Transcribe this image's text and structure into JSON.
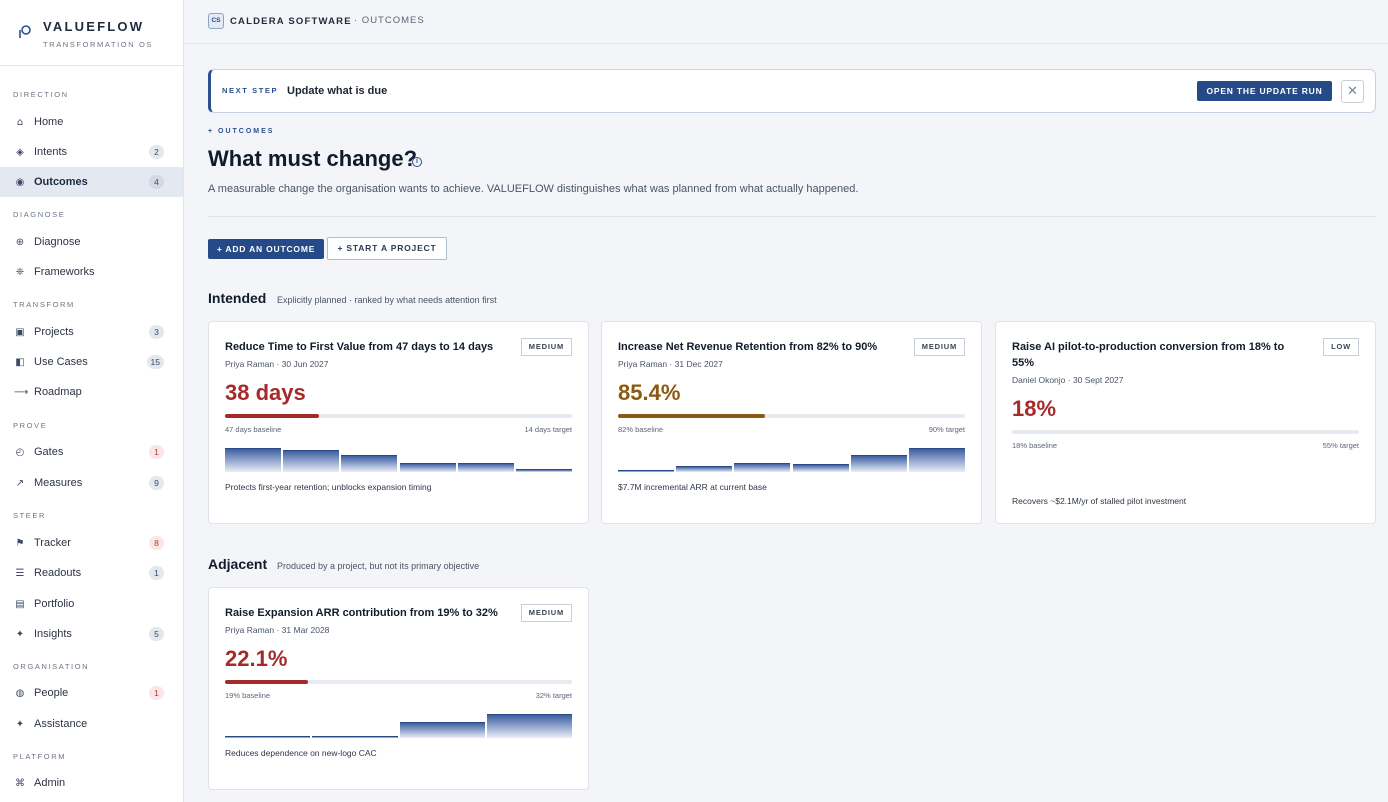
{
  "brand": {
    "name": "VALUEFLOW",
    "subtitle": "TRANSFORMATION OS"
  },
  "sidebar": {
    "sections": [
      {
        "label": "DIRECTION",
        "items": [
          {
            "label": "Home",
            "icon": "home-icon",
            "glyph": "⌂",
            "badge": null,
            "active": false
          },
          {
            "label": "Intents",
            "icon": "intents-icon",
            "glyph": "◈",
            "badge": "2",
            "active": false
          },
          {
            "label": "Outcomes",
            "icon": "target-icon",
            "glyph": "◉",
            "badge": "4",
            "active": true
          }
        ]
      },
      {
        "label": "DIAGNOSE",
        "items": [
          {
            "label": "Diagnose",
            "icon": "globe-icon",
            "glyph": "⊕",
            "badge": null,
            "active": false
          },
          {
            "label": "Frameworks",
            "icon": "frameworks-icon",
            "glyph": "❈",
            "badge": null,
            "active": false
          }
        ]
      },
      {
        "label": "TRANSFORM",
        "items": [
          {
            "label": "Projects",
            "icon": "projects-icon",
            "glyph": "▣",
            "badge": "3",
            "active": false
          },
          {
            "label": "Use Cases",
            "icon": "use-cases-icon",
            "glyph": "◧",
            "badge": "15",
            "active": false
          },
          {
            "label": "Roadmap",
            "icon": "arrow-right-icon",
            "glyph": "⟶",
            "badge": null,
            "active": false
          }
        ]
      },
      {
        "label": "PROVE",
        "items": [
          {
            "label": "Gates",
            "icon": "gate-icon",
            "glyph": "◴",
            "badge": "1",
            "badge_red": true,
            "active": false
          },
          {
            "label": "Measures",
            "icon": "trend-icon",
            "glyph": "↗",
            "badge": "9",
            "active": false
          }
        ]
      },
      {
        "label": "STEER",
        "items": [
          {
            "label": "Tracker",
            "icon": "flag-icon",
            "glyph": "⚑",
            "badge": "8",
            "badge_red": true,
            "active": false
          },
          {
            "label": "Readouts",
            "icon": "readouts-icon",
            "glyph": "☰",
            "badge": "1",
            "active": false
          },
          {
            "label": "Portfolio",
            "icon": "portfolio-icon",
            "glyph": "▤",
            "badge": null,
            "active": false
          },
          {
            "label": "Insights",
            "icon": "sparkle-icon",
            "glyph": "✦",
            "badge": "5",
            "active": false
          }
        ]
      },
      {
        "label": "ORGANISATION",
        "items": [
          {
            "label": "People",
            "icon": "people-icon",
            "glyph": "◍",
            "badge": "1",
            "badge_red": true,
            "active": false
          },
          {
            "label": "Assistance",
            "icon": "assistance-icon",
            "glyph": "✦",
            "badge": null,
            "active": false
          }
        ]
      },
      {
        "label": "PLATFORM",
        "items": [
          {
            "label": "Admin",
            "icon": "command-icon",
            "glyph": "⌘",
            "badge": null,
            "active": false
          }
        ]
      }
    ]
  },
  "topbar": {
    "org_initials": "CS",
    "org_name": "CALDERA SOFTWARE",
    "breadcrumb": "· OUTCOMES"
  },
  "banner": {
    "tag": "NEXT STEP",
    "text": "Update what is due",
    "button": "OPEN THE UPDATE RUN",
    "close": "✕"
  },
  "page": {
    "eyebrow": "+ OUTCOMES",
    "title": "What must change?",
    "description": "A measurable change the organisation wants to achieve. VALUEFLOW distinguishes what was planned from what actually happened.",
    "add_button": "+ ADD AN OUTCOME",
    "project_button": "+ START A PROJECT"
  },
  "sections": {
    "intended": {
      "title": "Intended",
      "subtitle": "Explicitly planned · ranked by what needs attention first"
    },
    "adjacent": {
      "title": "Adjacent",
      "subtitle": "Produced by a project, but not its primary objective"
    }
  },
  "colors": {
    "bad": "#a52a2a",
    "warn": "#8a5a12",
    "accent": "#264a87"
  },
  "cards": [
    {
      "title": "Reduce Time to First Value from 47 days to 14 days",
      "badge": "MEDIUM",
      "meta": "Priya Raman · 30 Jun 2027",
      "value": "38 days",
      "status": "bad",
      "progress": 0.27,
      "baseline": "47 days baseline",
      "target": "14 days target",
      "trend": [
        1.0,
        0.9,
        0.7,
        0.38,
        0.38,
        0.12
      ],
      "note": "Protects first-year retention; unblocks expansion timing"
    },
    {
      "title": "Increase Net Revenue Retention from 82% to 90%",
      "badge": "MEDIUM",
      "meta": "Priya Raman · 31 Dec 2027",
      "value": "85.4%",
      "status": "warn",
      "progress": 0.425,
      "baseline": "82% baseline",
      "target": "90% target",
      "trend": [
        0.1,
        0.25,
        0.38,
        0.35,
        0.7,
        1.0
      ],
      "note": "$7.7M incremental ARR at current base"
    },
    {
      "title": "Raise AI pilot-to-production conversion from 18% to 55%",
      "badge": "LOW",
      "meta": "Daniel Okonjo · 30 Sept 2027",
      "value": "18%",
      "status": "bad",
      "progress": 0.0,
      "baseline": "18% baseline",
      "target": "55% target",
      "trend": [],
      "note": "Recovers ~$2.1M/yr of stalled pilot investment"
    },
    {
      "title": "Raise Expansion ARR contribution from 19% to 32%",
      "badge": "MEDIUM",
      "meta": "Priya Raman · 31 Mar 2028",
      "value": "22.1%",
      "status": "bad",
      "progress": 0.24,
      "baseline": "19% baseline",
      "target": "32% target",
      "trend": [
        0.06,
        0.1,
        0.65,
        1.0
      ],
      "note": "Reduces dependence on new-logo CAC"
    }
  ]
}
